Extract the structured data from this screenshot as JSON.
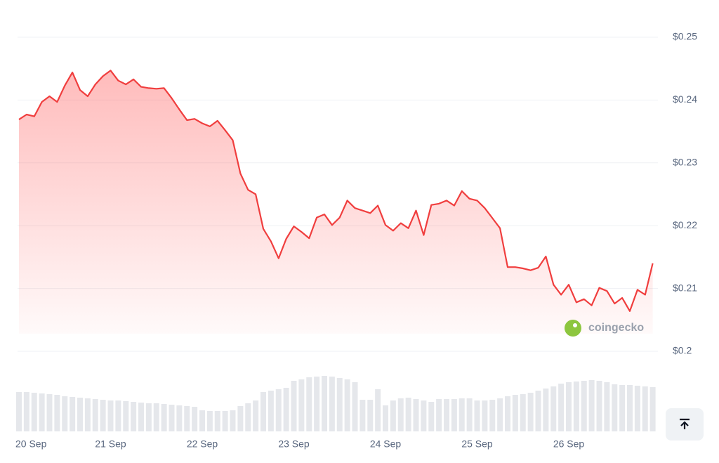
{
  "chart_data": {
    "type": "line",
    "categories": [
      "20 Sep",
      null,
      null,
      null,
      null,
      null,
      null,
      null,
      null,
      null,
      null,
      null,
      "21 Sep",
      null,
      null,
      null,
      null,
      null,
      null,
      null,
      null,
      null,
      null,
      null,
      "22 Sep",
      null,
      null,
      null,
      null,
      null,
      null,
      null,
      null,
      null,
      null,
      null,
      "23 Sep",
      null,
      null,
      null,
      null,
      null,
      null,
      null,
      null,
      null,
      null,
      null,
      "24 Sep",
      null,
      null,
      null,
      null,
      null,
      null,
      null,
      null,
      null,
      null,
      null,
      "25 Sep",
      null,
      null,
      null,
      null,
      null,
      null,
      null,
      null,
      null,
      null,
      null,
      "26 Sep",
      null,
      null,
      null,
      null,
      null,
      null,
      null,
      null,
      null,
      null,
      null
    ],
    "values": [
      0.2369,
      0.2377,
      0.2374,
      0.2397,
      0.2406,
      0.2397,
      0.2423,
      0.2444,
      0.2416,
      0.2406,
      0.2425,
      0.2438,
      0.2447,
      0.2431,
      0.2425,
      0.2433,
      0.2421,
      0.2419,
      0.2418,
      0.2419,
      0.2403,
      0.2385,
      0.2368,
      0.237,
      0.2363,
      0.2358,
      0.2367,
      0.2352,
      0.2336,
      0.2283,
      0.2257,
      0.225,
      0.2195,
      0.2175,
      0.2148,
      0.2179,
      0.2199,
      0.219,
      0.218,
      0.2213,
      0.2218,
      0.2201,
      0.2213,
      0.224,
      0.2228,
      0.2224,
      0.222,
      0.2232,
      0.2201,
      0.2192,
      0.2204,
      0.2196,
      0.2224,
      0.2185,
      0.2233,
      0.2235,
      0.224,
      0.2232,
      0.2255,
      0.2243,
      0.224,
      0.2228,
      0.2212,
      0.2196,
      0.2134,
      0.2134,
      0.2132,
      0.2129,
      0.2133,
      0.2151,
      0.2106,
      0.209,
      0.2106,
      0.2078,
      0.2083,
      0.2073,
      0.2101,
      0.2096,
      0.2076,
      0.2085,
      0.2064,
      0.2098,
      0.209,
      0.214
    ],
    "color": "#f03e3e",
    "volumes": [
      56,
      56,
      55,
      54,
      53,
      52,
      50,
      49,
      48,
      47,
      46,
      45,
      44,
      44,
      43,
      42,
      41,
      40,
      40,
      39,
      38,
      37,
      36,
      35,
      30,
      29,
      29,
      29,
      30,
      36,
      40,
      44,
      56,
      58,
      60,
      62,
      72,
      74,
      77,
      78,
      79,
      78,
      76,
      74,
      70,
      45,
      45,
      60,
      37,
      44,
      47,
      48,
      46,
      44,
      42,
      46,
      46,
      46,
      47,
      47,
      44,
      44,
      45,
      47,
      50,
      52,
      53,
      55,
      58,
      61,
      64,
      68,
      70,
      71,
      72,
      73,
      72,
      70,
      67,
      66,
      66,
      65,
      64,
      63
    ],
    "volume_color": "#e5e7eb",
    "ylim": [
      0.2,
      0.25
    ],
    "yticks": [
      {
        "value": 0.2,
        "label": "$0.2"
      },
      {
        "value": 0.21,
        "label": "$0.21"
      },
      {
        "value": 0.22,
        "label": "$0.22"
      },
      {
        "value": 0.23,
        "label": "$0.23"
      },
      {
        "value": 0.24,
        "label": "$0.24"
      },
      {
        "value": 0.25,
        "label": "$0.25"
      }
    ],
    "grid": true,
    "watermark": "coingecko"
  }
}
